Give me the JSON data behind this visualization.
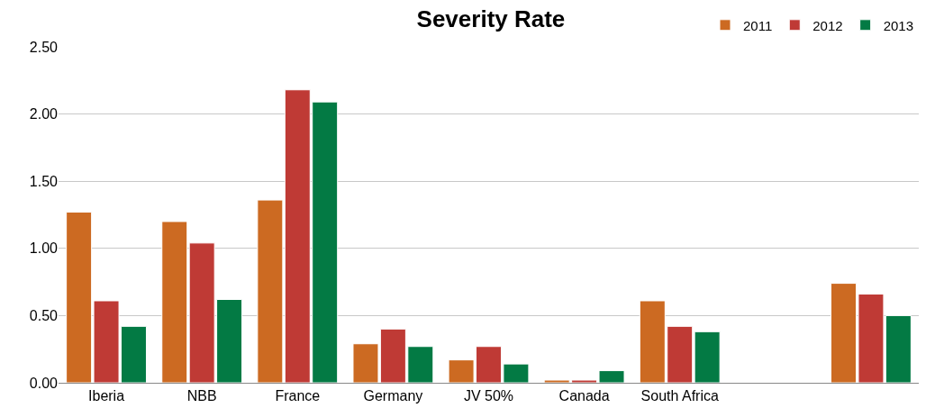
{
  "chart_data": {
    "type": "bar",
    "title": "Severity Rate",
    "categories": [
      "Iberia",
      "NBB",
      "France",
      "Germany",
      "JV 50%",
      "Canada",
      "South Africa",
      null,
      null
    ],
    "series": [
      {
        "name": "2011",
        "color": "#cc6a22",
        "values": [
          1.27,
          1.2,
          1.36,
          0.29,
          0.17,
          0.02,
          0.61,
          null,
          0.74
        ]
      },
      {
        "name": "2012",
        "color": "#bf3a35",
        "values": [
          0.61,
          1.04,
          2.18,
          0.4,
          0.27,
          0.02,
          0.42,
          null,
          0.66
        ]
      },
      {
        "name": "2013",
        "color": "#037a44",
        "values": [
          0.42,
          0.62,
          2.09,
          0.27,
          0.14,
          0.09,
          0.38,
          null,
          0.5
        ]
      }
    ],
    "ylim": [
      0,
      2.5
    ],
    "yticks": [
      {
        "value": 0,
        "label": "0.00"
      },
      {
        "value": 0.5,
        "label": "0.50"
      },
      {
        "value": 1,
        "label": "1.00"
      },
      {
        "value": 1.5,
        "label": "1.50"
      },
      {
        "value": 2,
        "label": "2.00"
      },
      {
        "value": 2.5,
        "label": "2.50"
      }
    ],
    "grid": "y",
    "legend": "top right"
  }
}
